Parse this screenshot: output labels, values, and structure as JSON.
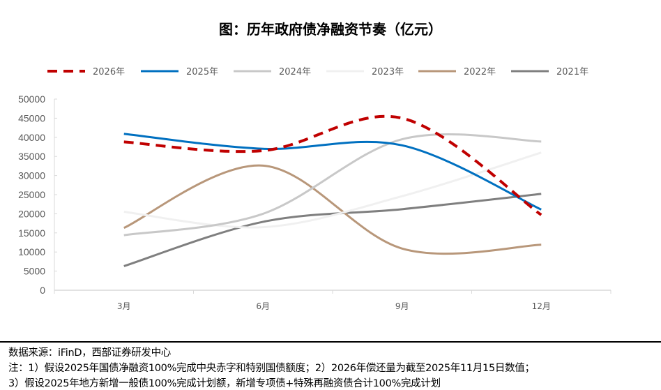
{
  "chart_data": {
    "type": "line",
    "title": "图：历年政府债净融资节奏（亿元）",
    "categories": [
      "3月",
      "6月",
      "9月",
      "12月"
    ],
    "ylim": [
      0,
      50000
    ],
    "yticks": [
      0,
      5000,
      10000,
      15000,
      20000,
      25000,
      30000,
      35000,
      40000,
      45000,
      50000
    ],
    "grid": false,
    "smooth": true,
    "legend": "top",
    "series": [
      {
        "name": "2026年",
        "values": [
          38800,
          36500,
          45000,
          19700
        ],
        "color": "#c00000",
        "dashed": true
      },
      {
        "name": "2025年",
        "values": [
          40900,
          37000,
          37900,
          21100
        ],
        "color": "#0070c0",
        "dashed": false
      },
      {
        "name": "2024年",
        "values": [
          14400,
          20000,
          39500,
          38900
        ],
        "color": "#c8c8c8",
        "dashed": false
      },
      {
        "name": "2023年",
        "values": [
          20500,
          16500,
          24600,
          36000
        ],
        "color": "#f0f0f0",
        "dashed": false
      },
      {
        "name": "2022年",
        "values": [
          16300,
          32600,
          10900,
          11900
        ],
        "color": "#b8977a",
        "dashed": false
      },
      {
        "name": "2021年",
        "values": [
          6300,
          17900,
          21200,
          25200
        ],
        "color": "#7f7f7f",
        "dashed": false
      }
    ]
  },
  "notes": {
    "source": "数据来源：iFinD，西部证券研发中心",
    "line1": "注：1）假设2025年国债净融资100%完成中央赤字和特别国债额度；2）2026年偿还量为截至2025年11月15日数值；",
    "line2": "3）假设2025年地方新增一般债100%完成计划额，新增专项债+特殊再融资债合计100%完成计划"
  }
}
